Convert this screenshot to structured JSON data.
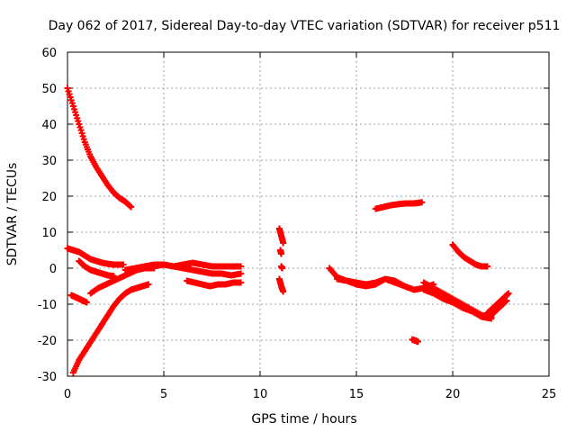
{
  "chart_data": {
    "type": "scatter",
    "title": "Day 062 of 2017, Sidereal Day-to-day VTEC variation (SDTVAR) for receiver p511",
    "xlabel": "GPS time / hours",
    "ylabel": "SDTVAR / TECUs",
    "xlim": [
      0,
      25
    ],
    "ylim": [
      -30,
      60
    ],
    "xticks": [
      0,
      5,
      10,
      15,
      20,
      25
    ],
    "yticks": [
      -30,
      -20,
      -10,
      0,
      10,
      20,
      30,
      40,
      50,
      60
    ],
    "xtick_labels": [
      "0",
      "5",
      "10",
      "15",
      "20",
      "25"
    ],
    "ytick_labels": [
      "-30",
      "-20",
      "-10",
      "0",
      "10",
      "20",
      "30",
      "40",
      "50",
      "60"
    ],
    "grid": true,
    "marker": "plus",
    "color": "#ff0000",
    "series": [
      {
        "name": "arc-descending-from-50",
        "x": [
          0.0,
          0.3,
          0.6,
          0.9,
          1.2,
          1.5,
          1.8,
          2.1,
          2.4,
          2.7,
          3.0,
          3.3
        ],
        "y": [
          50,
          45,
          40,
          35,
          31,
          28,
          25.5,
          23,
          21,
          19.5,
          18.5,
          17
        ]
      },
      {
        "name": "arc-from-5-to-1",
        "x": [
          0.0,
          0.3,
          0.6,
          0.9,
          1.2,
          1.5,
          1.8,
          2.1,
          2.4,
          2.7,
          2.9
        ],
        "y": [
          5.5,
          5,
          4.5,
          3.5,
          2.5,
          2,
          1.5,
          1.2,
          1,
          1,
          1
        ]
      },
      {
        "name": "arc-from-2-to-minus2",
        "x": [
          0.6,
          0.9,
          1.2,
          1.5,
          1.8,
          2.1,
          2.4
        ],
        "y": [
          2,
          0.5,
          -0.5,
          -1,
          -1.5,
          -2,
          -2.2
        ]
      },
      {
        "name": "arc-minus8",
        "x": [
          0.2,
          0.4,
          0.6,
          0.8,
          1.0
        ],
        "y": [
          -7.5,
          -8,
          -8.5,
          -9,
          -9.5
        ]
      },
      {
        "name": "arc-rising-from-minus29",
        "x": [
          0.3,
          0.6,
          0.9,
          1.2,
          1.5,
          1.8,
          2.1,
          2.4,
          2.7,
          3.0,
          3.3,
          3.6,
          3.9,
          4.2
        ],
        "y": [
          -29,
          -25.5,
          -23,
          -20.5,
          -18,
          -15.5,
          -13,
          -10.5,
          -8.5,
          -7,
          -6,
          -5.5,
          -5,
          -4.5
        ]
      },
      {
        "name": "arc-rising-from-minus7",
        "x": [
          1.2,
          1.6,
          2.0,
          2.4,
          2.8,
          3.2,
          3.6,
          4.0,
          4.5
        ],
        "y": [
          -7,
          -5.5,
          -4.5,
          -3.5,
          -2.5,
          -1.5,
          -0.5,
          0,
          0
        ]
      },
      {
        "name": "band-near-zero-main",
        "x": [
          3.0,
          3.5,
          4.0,
          4.5,
          5.0,
          5.5,
          6.0,
          6.5,
          7.0,
          7.5,
          8.0,
          8.5,
          9.0
        ],
        "y": [
          -0.5,
          0,
          0.5,
          1,
          1,
          0.5,
          1,
          1.5,
          1,
          0.5,
          0.5,
          0.5,
          0.5
        ]
      },
      {
        "name": "band-near-zero-lower",
        "x": [
          4.0,
          4.5,
          5.0,
          5.5,
          6.0,
          6.5,
          7.0,
          7.5,
          8.0,
          8.5,
          9.0
        ],
        "y": [
          0,
          0.5,
          1,
          0.5,
          0,
          -0.5,
          -1,
          -1.5,
          -1.5,
          -2,
          -1.5
        ]
      },
      {
        "name": "arc-minus4",
        "x": [
          6.2,
          6.6,
          7.0,
          7.4,
          7.8,
          8.2,
          8.6,
          9.0
        ],
        "y": [
          -3.5,
          -4,
          -4.5,
          -5,
          -4.5,
          -4.5,
          -4,
          -4
        ]
      },
      {
        "name": "short-arc-11h-upper",
        "x": [
          11.0,
          11.1,
          11.2
        ],
        "y": [
          11,
          9,
          7
        ]
      },
      {
        "name": "short-arc-11h-middle",
        "x": [
          11.05,
          11.1
        ],
        "y": [
          5,
          4
        ]
      },
      {
        "name": "short-arc-11h-zero",
        "x": [
          11.1,
          11.15
        ],
        "y": [
          0.5,
          0
        ]
      },
      {
        "name": "short-arc-11h-lower",
        "x": [
          11.0,
          11.1,
          11.2
        ],
        "y": [
          -3,
          -5,
          -6.5
        ]
      },
      {
        "name": "arc-17-to-18",
        "x": [
          16.0,
          16.4,
          16.8,
          17.2,
          17.6,
          18.0,
          18.4
        ],
        "y": [
          16.5,
          17,
          17.5,
          17.8,
          18,
          18,
          18.3
        ]
      },
      {
        "name": "point-minus20",
        "x": [
          17.9,
          18.0,
          18.1,
          18.2
        ],
        "y": [
          -19.8,
          -20,
          -20.2,
          -20.4
        ]
      },
      {
        "name": "arc-14-to-19",
        "x": [
          13.6,
          14.0,
          14.5,
          15.0,
          15.5,
          16.0,
          16.5,
          17.0,
          17.5,
          18.0,
          18.5,
          19.0
        ],
        "y": [
          0,
          -2.5,
          -3.5,
          -4,
          -4.5,
          -4,
          -3,
          -3.5,
          -5,
          -6,
          -5.5,
          -4.5
        ]
      },
      {
        "name": "arc-14-to-16-lower",
        "x": [
          14.0,
          14.5,
          15.0,
          15.5,
          16.0,
          16.5,
          17.0,
          17.5,
          18.0
        ],
        "y": [
          -3,
          -3.5,
          -4.5,
          -5,
          -4.5,
          -3,
          -4,
          -5,
          -6
        ]
      },
      {
        "name": "arc-descending-after-19",
        "x": [
          18.5,
          19.0,
          19.5,
          20.0,
          20.5,
          21.0,
          21.5,
          22.0
        ],
        "y": [
          -4,
          -5.5,
          -7,
          -8.5,
          -10,
          -11.5,
          -13,
          -13.5
        ]
      },
      {
        "name": "arc-descending-after-19-lower",
        "x": [
          18.5,
          19.0,
          19.5,
          20.0,
          20.5,
          21.0,
          21.5,
          22.0
        ],
        "y": [
          -6,
          -7,
          -8.5,
          -9.5,
          -11,
          -12,
          -13.5,
          -14
        ]
      },
      {
        "name": "arc-rising-to-23",
        "x": [
          21.8,
          22.1,
          22.4,
          22.7,
          22.9
        ],
        "y": [
          -12.5,
          -11,
          -9.5,
          -8,
          -7
        ]
      },
      {
        "name": "arc-rising-to-23-lower",
        "x": [
          21.9,
          22.2,
          22.5,
          22.8
        ],
        "y": [
          -13.5,
          -12,
          -10.5,
          -9
        ]
      },
      {
        "name": "arc-from-6-to-0",
        "x": [
          20.0,
          20.3,
          20.6,
          20.9,
          21.2,
          21.5,
          21.8
        ],
        "y": [
          6.5,
          4.5,
          3,
          2,
          1,
          0.5,
          0.5
        ]
      }
    ]
  }
}
